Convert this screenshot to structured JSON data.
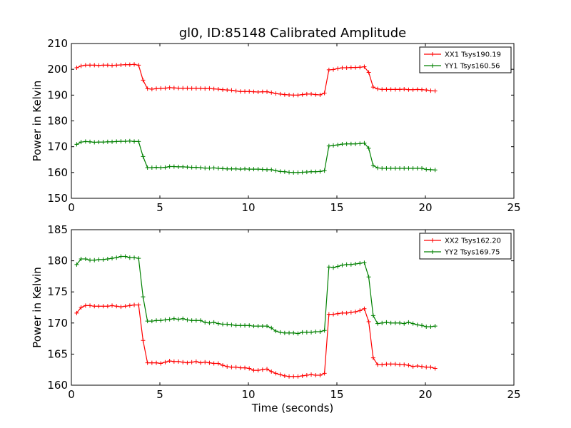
{
  "figure": {
    "title": "gl0, ID:85148 Calibrated Amplitude"
  },
  "chart_data": [
    {
      "type": "line",
      "title": "gl0, ID:85148 Calibrated Amplitude",
      "xlabel": "",
      "ylabel": "Power in Kelvin",
      "xlim": [
        0,
        25
      ],
      "ylim": [
        150,
        210
      ],
      "xticks": [
        0,
        5,
        10,
        15,
        20,
        25
      ],
      "yticks": [
        150,
        160,
        170,
        180,
        190,
        200,
        210
      ],
      "grid": false,
      "legend_position": "top-right",
      "x": [
        0.3,
        0.55,
        0.8,
        1.05,
        1.3,
        1.55,
        1.8,
        2.05,
        2.3,
        2.55,
        2.8,
        3.05,
        3.3,
        3.55,
        3.8,
        4.05,
        4.3,
        4.55,
        4.8,
        5.05,
        5.3,
        5.55,
        5.8,
        6.05,
        6.3,
        6.55,
        6.8,
        7.05,
        7.3,
        7.55,
        7.8,
        8.05,
        8.3,
        8.55,
        8.8,
        9.05,
        9.3,
        9.55,
        9.8,
        10.05,
        10.3,
        10.55,
        10.8,
        11.05,
        11.3,
        11.55,
        11.8,
        12.05,
        12.3,
        12.55,
        12.8,
        13.05,
        13.3,
        13.55,
        13.8,
        14.05,
        14.3,
        14.55,
        14.8,
        15.05,
        15.3,
        15.55,
        15.8,
        16.05,
        16.3,
        16.55,
        16.8,
        17.05,
        17.3,
        17.55,
        17.8,
        18.05,
        18.3,
        18.55,
        18.8,
        19.05,
        19.3,
        19.55,
        19.8,
        20.05,
        20.3,
        20.55
      ],
      "series": [
        {
          "name": "XX1 Tsys190.19",
          "color": "#ff0000",
          "values": [
            200.6,
            201.3,
            201.6,
            201.6,
            201.6,
            201.5,
            201.6,
            201.6,
            201.5,
            201.6,
            201.7,
            201.8,
            201.8,
            201.9,
            201.6,
            195.8,
            192.5,
            192.3,
            192.5,
            192.6,
            192.7,
            192.9,
            192.8,
            192.7,
            192.7,
            192.7,
            192.6,
            192.6,
            192.6,
            192.5,
            192.6,
            192.4,
            192.3,
            192.1,
            192.0,
            191.9,
            191.6,
            191.4,
            191.4,
            191.4,
            191.3,
            191.2,
            191.3,
            191.3,
            191.0,
            190.6,
            190.4,
            190.2,
            190.1,
            190.0,
            190.0,
            190.2,
            190.4,
            190.4,
            190.2,
            190.1,
            190.8,
            199.8,
            199.9,
            200.3,
            200.6,
            200.6,
            200.7,
            200.7,
            200.8,
            201.0,
            198.8,
            193.1,
            192.4,
            192.2,
            192.2,
            192.2,
            192.2,
            192.2,
            192.3,
            192.1,
            192.1,
            192.2,
            192.1,
            192.0,
            191.7,
            191.6
          ]
        },
        {
          "name": "YY1 Tsys160.56",
          "color": "#008000",
          "values": [
            170.9,
            171.8,
            172.0,
            171.9,
            171.7,
            171.8,
            171.8,
            171.9,
            171.9,
            172.0,
            172.1,
            172.1,
            172.2,
            172.0,
            172.0,
            166.2,
            161.9,
            161.9,
            162.0,
            161.9,
            162.0,
            162.3,
            162.3,
            162.2,
            162.2,
            162.1,
            162.0,
            162.0,
            161.9,
            161.7,
            161.7,
            161.8,
            161.6,
            161.5,
            161.4,
            161.4,
            161.4,
            161.3,
            161.4,
            161.3,
            161.3,
            161.3,
            161.2,
            161.1,
            161.1,
            160.7,
            160.4,
            160.3,
            160.1,
            160.0,
            160.0,
            160.1,
            160.2,
            160.3,
            160.3,
            160.4,
            160.7,
            170.3,
            170.5,
            170.7,
            171.0,
            171.1,
            171.1,
            171.1,
            171.2,
            171.4,
            169.4,
            162.7,
            161.8,
            161.6,
            161.6,
            161.6,
            161.6,
            161.6,
            161.6,
            161.6,
            161.6,
            161.6,
            161.6,
            161.2,
            161.1,
            161.0
          ]
        }
      ]
    },
    {
      "type": "line",
      "title": "",
      "xlabel": "Time (seconds)",
      "ylabel": "Power in Kelvin",
      "xlim": [
        0,
        25
      ],
      "ylim": [
        160,
        185
      ],
      "xticks": [
        0,
        5,
        10,
        15,
        20,
        25
      ],
      "yticks": [
        160,
        165,
        170,
        175,
        180,
        185
      ],
      "grid": false,
      "legend_position": "top-right",
      "x": [
        0.3,
        0.55,
        0.8,
        1.05,
        1.3,
        1.55,
        1.8,
        2.05,
        2.3,
        2.55,
        2.8,
        3.05,
        3.3,
        3.55,
        3.8,
        4.05,
        4.3,
        4.55,
        4.8,
        5.05,
        5.3,
        5.55,
        5.8,
        6.05,
        6.3,
        6.55,
        6.8,
        7.05,
        7.3,
        7.55,
        7.8,
        8.05,
        8.3,
        8.55,
        8.8,
        9.05,
        9.3,
        9.55,
        9.8,
        10.05,
        10.3,
        10.55,
        10.8,
        11.05,
        11.3,
        11.55,
        11.8,
        12.05,
        12.3,
        12.55,
        12.8,
        13.05,
        13.3,
        13.55,
        13.8,
        14.05,
        14.3,
        14.55,
        14.8,
        15.05,
        15.3,
        15.55,
        15.8,
        16.05,
        16.3,
        16.55,
        16.8,
        17.05,
        17.3,
        17.55,
        17.8,
        18.05,
        18.3,
        18.55,
        18.8,
        19.05,
        19.3,
        19.55,
        19.8,
        20.05,
        20.3,
        20.55
      ],
      "series": [
        {
          "name": "XX2 Tsys162.20",
          "color": "#ff0000",
          "values": [
            171.6,
            172.5,
            172.8,
            172.8,
            172.7,
            172.7,
            172.7,
            172.7,
            172.8,
            172.7,
            172.6,
            172.7,
            172.8,
            172.9,
            172.9,
            167.2,
            163.6,
            163.6,
            163.6,
            163.5,
            163.7,
            163.9,
            163.8,
            163.8,
            163.7,
            163.6,
            163.7,
            163.8,
            163.6,
            163.7,
            163.6,
            163.5,
            163.5,
            163.2,
            163.0,
            162.9,
            162.9,
            162.8,
            162.8,
            162.7,
            162.4,
            162.4,
            162.5,
            162.6,
            162.2,
            161.9,
            161.7,
            161.5,
            161.4,
            161.4,
            161.4,
            161.5,
            161.6,
            161.7,
            161.6,
            161.6,
            161.9,
            171.4,
            171.4,
            171.5,
            171.6,
            171.6,
            171.7,
            171.8,
            172.0,
            172.3,
            170.2,
            164.4,
            163.3,
            163.3,
            163.4,
            163.4,
            163.4,
            163.3,
            163.3,
            163.2,
            163.0,
            163.1,
            163.0,
            162.9,
            162.9,
            162.7
          ]
        },
        {
          "name": "YY2 Tsys169.75",
          "color": "#008000",
          "values": [
            179.4,
            180.3,
            180.3,
            180.1,
            180.1,
            180.2,
            180.2,
            180.3,
            180.4,
            180.5,
            180.7,
            180.7,
            180.5,
            180.5,
            180.4,
            174.2,
            170.3,
            170.3,
            170.4,
            170.4,
            170.5,
            170.6,
            170.7,
            170.6,
            170.7,
            170.5,
            170.4,
            170.4,
            170.4,
            170.1,
            170.0,
            170.1,
            169.9,
            169.8,
            169.8,
            169.7,
            169.6,
            169.6,
            169.6,
            169.6,
            169.5,
            169.5,
            169.5,
            169.5,
            169.2,
            168.7,
            168.5,
            168.4,
            168.4,
            168.4,
            168.3,
            168.5,
            168.5,
            168.5,
            168.6,
            168.6,
            168.8,
            179.0,
            178.9,
            179.1,
            179.3,
            179.4,
            179.4,
            179.5,
            179.6,
            179.7,
            177.4,
            171.2,
            169.9,
            170.0,
            170.1,
            170.0,
            170.0,
            170.0,
            169.9,
            170.1,
            169.9,
            169.7,
            169.6,
            169.4,
            169.4,
            169.5
          ]
        }
      ]
    }
  ]
}
